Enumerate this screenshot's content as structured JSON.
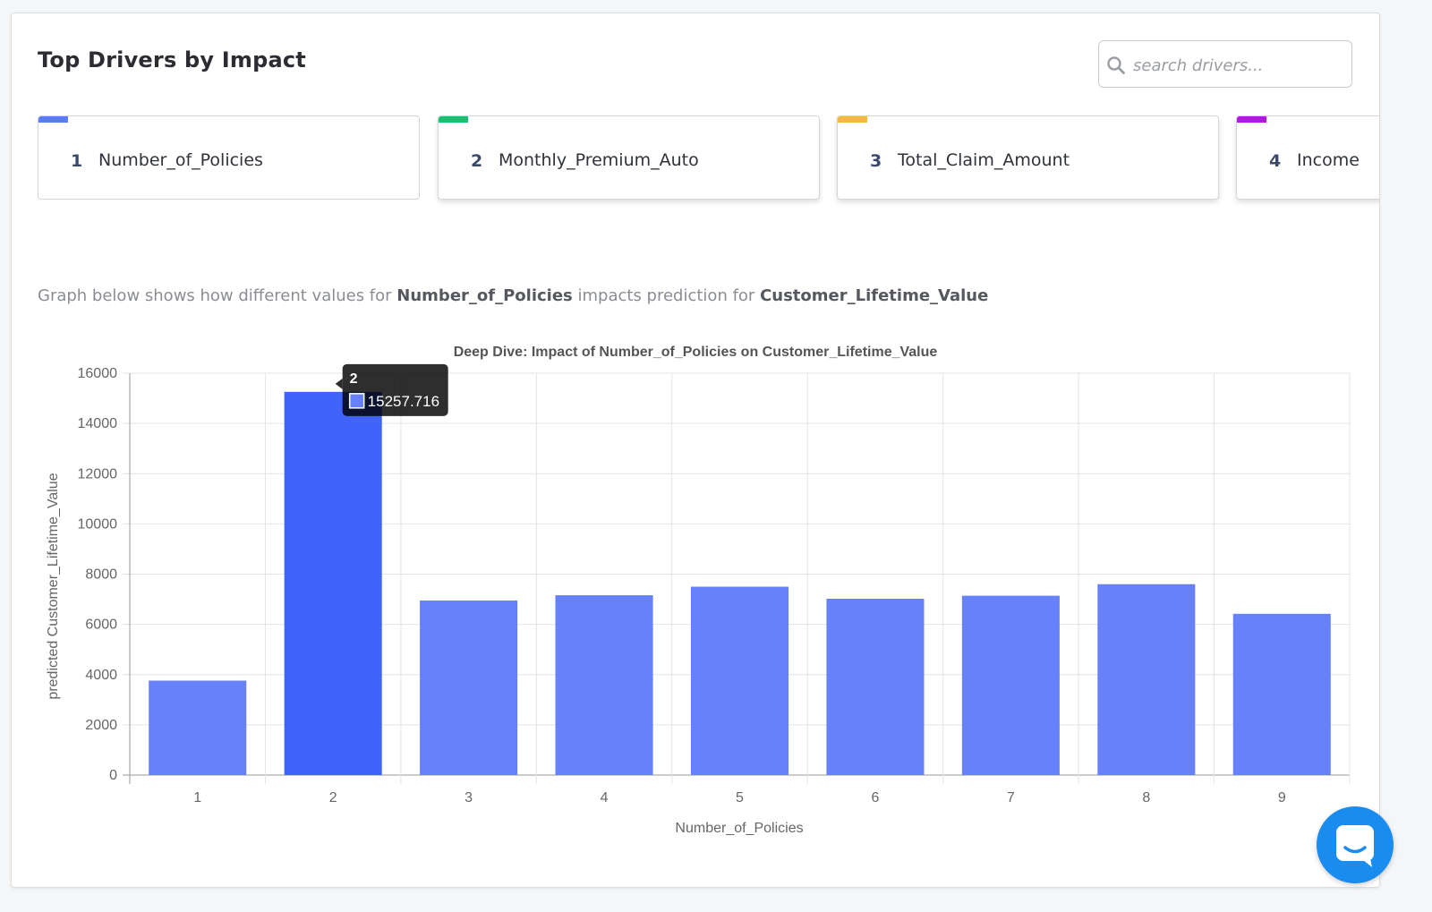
{
  "header": {
    "title": "Top Drivers by Impact"
  },
  "search": {
    "placeholder": "search drivers..."
  },
  "drivers": [
    {
      "rank": "1",
      "name": "Number_of_Policies",
      "color": "#5b7cf7"
    },
    {
      "rank": "2",
      "name": "Monthly_Premium_Auto",
      "color": "#16c172"
    },
    {
      "rank": "3",
      "name": "Total_Claim_Amount",
      "color": "#f6b93b"
    },
    {
      "rank": "4",
      "name": "Income",
      "color": "#b515e6"
    }
  ],
  "description": {
    "prefix": "Graph below shows how different values for",
    "feature": "Number_of_Policies",
    "middle": "impacts prediction for",
    "target": "Customer_Lifetime_Value"
  },
  "chart_data": {
    "type": "bar",
    "title": "Deep Dive: Impact of Number_of_Policies on Customer_Lifetime_Value",
    "xlabel": "Number_of_Policies",
    "ylabel": "predicted Customer_Lifetime_Value",
    "categories": [
      "1",
      "2",
      "3",
      "4",
      "5",
      "6",
      "7",
      "8",
      "9"
    ],
    "values": [
      3760,
      15257.716,
      6950,
      7160,
      7500,
      7020,
      7140,
      7600,
      6420
    ],
    "ylim": [
      0,
      16000
    ],
    "yticks": [
      "0",
      "2000",
      "4000",
      "6000",
      "8000",
      "10000",
      "12000",
      "14000",
      "16000"
    ],
    "grid": true,
    "bar_color": "#6681fa",
    "highlight_color": "#3f63fb",
    "highlight_index": 1,
    "tooltip": {
      "category": "2",
      "value": "15257.716"
    }
  },
  "chat": {
    "icon": "chat-icon",
    "color": "#1a8cf0"
  }
}
